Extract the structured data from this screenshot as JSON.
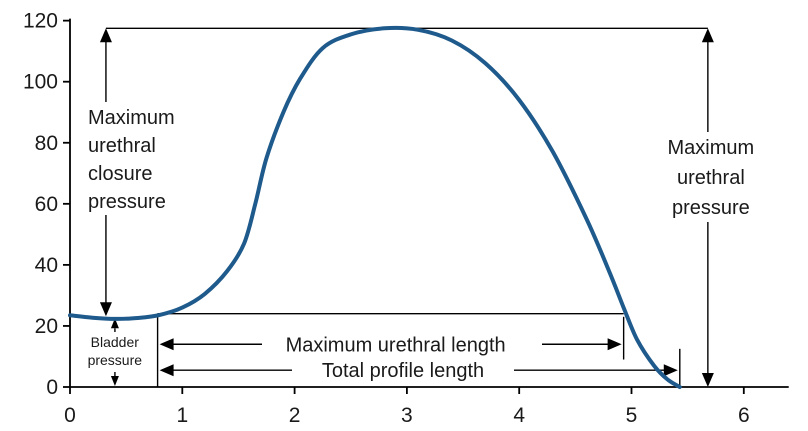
{
  "chart_data": {
    "type": "line",
    "title": "",
    "xlabel": "",
    "ylabel": "",
    "xlim": [
      0,
      6.4
    ],
    "ylim": [
      0,
      120
    ],
    "x_ticks": [
      0,
      1,
      2,
      3,
      4,
      5,
      6
    ],
    "y_ticks": [
      0,
      20,
      40,
      60,
      80,
      100,
      120
    ],
    "grid": false,
    "series": [
      {
        "color": "#1f5a8c",
        "points": [
          [
            0.0,
            23.5
          ],
          [
            0.2,
            22.7
          ],
          [
            0.4,
            22.3
          ],
          [
            0.6,
            22.6
          ],
          [
            0.8,
            23.6
          ],
          [
            1.0,
            26.0
          ],
          [
            1.2,
            30.5
          ],
          [
            1.4,
            38.0
          ],
          [
            1.55,
            47.0
          ],
          [
            1.65,
            60.0
          ],
          [
            1.75,
            75.0
          ],
          [
            1.9,
            90.0
          ],
          [
            2.05,
            101.0
          ],
          [
            2.25,
            111.0
          ],
          [
            2.5,
            115.5
          ],
          [
            2.8,
            117.5
          ],
          [
            3.1,
            117.0
          ],
          [
            3.4,
            113.5
          ],
          [
            3.7,
            106.0
          ],
          [
            4.0,
            94.0
          ],
          [
            4.3,
            77.0
          ],
          [
            4.6,
            55.0
          ],
          [
            4.8,
            38.0
          ],
          [
            4.93,
            26.0
          ],
          [
            5.05,
            15.5
          ],
          [
            5.2,
            7.0
          ],
          [
            5.32,
            2.5
          ],
          [
            5.43,
            0.0
          ]
        ]
      }
    ],
    "annotations": {
      "max_closure_label": [
        "Maximum",
        "urethral",
        "closure",
        "pressure"
      ],
      "max_urethral_pressure_label": [
        "Maximum",
        "urethral",
        "pressure"
      ],
      "bladder_label": [
        "Bladder",
        "pressure"
      ],
      "max_urethral_length_label": "Maximum urethral length",
      "total_profile_length_label": "Total profile length",
      "max_pressure_value": 117.5,
      "bladder_pressure_value": 22.5,
      "closure_arrow_x": 0.32,
      "bladder_arrow_x": 0.4,
      "pressure_arrow_x": 5.68,
      "bladder_box_x": 0.78,
      "max_length_range": [
        0.78,
        4.93
      ],
      "total_length_range": [
        0.78,
        5.43
      ],
      "max_length_y": 14,
      "total_length_y": 5.5
    }
  }
}
